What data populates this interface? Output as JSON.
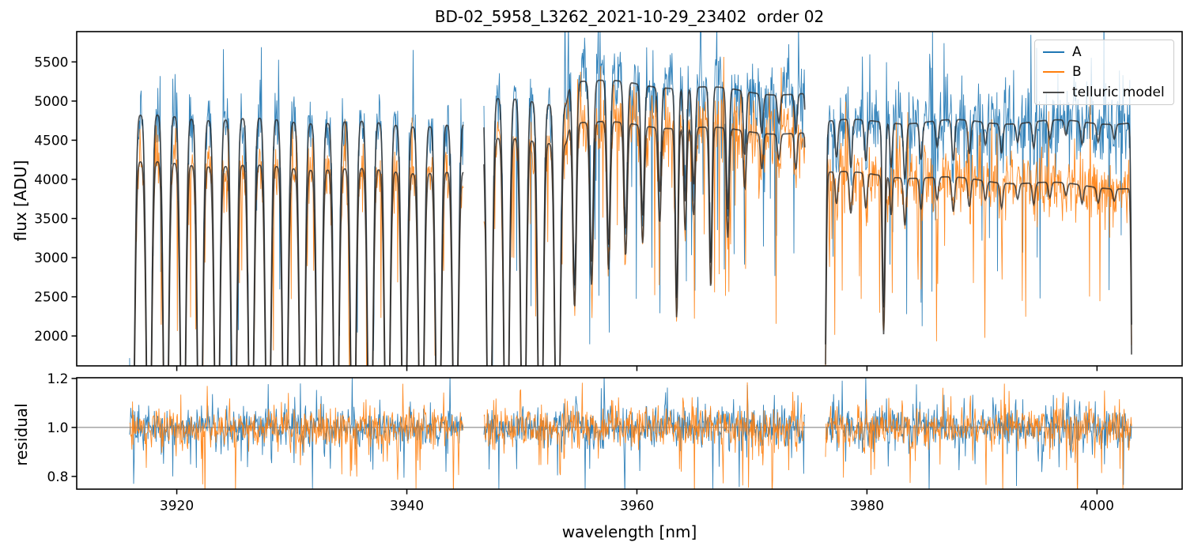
{
  "figure": {
    "title": "BD-02_5958_L3262_2021-10-29_23402  order 02",
    "xlabel": "wavelength [nm]",
    "ylabel_top": "flux [ADU]",
    "ylabel_bottom": "residual"
  },
  "legend": {
    "entries": [
      {
        "label": "A",
        "color": "#1f77b4"
      },
      {
        "label": "B",
        "color": "#ff7f0e"
      },
      {
        "label": "telluric model",
        "color": "#4d4d4d"
      }
    ]
  },
  "chart_data": {
    "type": "line",
    "title": "BD-02_5958_L3262_2021-10-29_23402  order 02",
    "xlabel": "wavelength [nm]",
    "xlim": [
      3911.3,
      4007.4
    ],
    "xticks": [
      3920,
      3940,
      3960,
      3980,
      4000
    ],
    "grid": false,
    "legend_position": "upper right",
    "panels": {
      "flux": {
        "ylabel": "flux [ADU]",
        "ylim": [
          1618,
          5887
        ],
        "yticks": [
          2000,
          2500,
          3000,
          3500,
          4000,
          4500,
          5000,
          5500
        ]
      },
      "residual": {
        "ylabel": "residual",
        "ylim": [
          0.748,
          1.203
        ],
        "yticks": [
          0.8,
          1.0,
          1.2
        ],
        "reference_line": 1.0,
        "reference_line_color": "#777777"
      }
    },
    "series": [
      {
        "name": "A",
        "color": "#1f77b4",
        "style": "noisy spectrum"
      },
      {
        "name": "B",
        "color": "#ff7f0e",
        "style": "noisy spectrum"
      },
      {
        "name": "telluric model",
        "color": "#2b2b2b",
        "style": "smooth model, one curve per fiber"
      }
    ],
    "segments": [
      {
        "range": [
          3915.9,
          3944.9
        ],
        "continuum_A": [
          5110,
          4970
        ],
        "continuum_B": [
          4480,
          4330
        ]
      },
      {
        "range": [
          3946.7,
          3974.6
        ],
        "continuum_A": [
          5340,
          5080
        ],
        "continuum_B": [
          4800,
          4580
        ]
      },
      {
        "range": [
          3976.4,
          4003.0
        ],
        "continuum_A": [
          4740,
          4730
        ],
        "continuum_B": [
          4090,
          3890
        ]
      }
    ],
    "continuum_wiggle": {
      "amplitude_A": 28,
      "amplitude_B": 24,
      "period_nm": 9.0
    },
    "telluric_comb": {
      "start": 3916.1,
      "period": 1.48,
      "last": 3953.2,
      "depth": 1.06,
      "sigma": 0.225,
      "secondary_offset": 0.74,
      "secondary_depth": 0.05,
      "secondary_sigma": 0.18
    },
    "telluric_lines": [
      {
        "c": 3954.58,
        "d": 0.5,
        "w": 0.15
      },
      {
        "c": 3956.06,
        "d": 0.44,
        "w": 0.15
      },
      {
        "c": 3957.54,
        "d": 0.4,
        "w": 0.14
      },
      {
        "c": 3959.02,
        "d": 0.36,
        "w": 0.14
      },
      {
        "c": 3960.5,
        "d": 0.32,
        "w": 0.14
      },
      {
        "c": 3961.98,
        "d": 0.26,
        "w": 0.13
      },
      {
        "c": 3963.46,
        "d": 0.52,
        "w": 0.12
      },
      {
        "c": 3964.2,
        "d": 0.28,
        "w": 0.12
      },
      {
        "c": 3964.94,
        "d": 0.24,
        "w": 0.13
      },
      {
        "c": 3966.42,
        "d": 0.44,
        "w": 0.12
      },
      {
        "c": 3967.9,
        "d": 0.3,
        "w": 0.12
      },
      {
        "c": 3969.38,
        "d": 0.16,
        "w": 0.12
      },
      {
        "c": 3970.86,
        "d": 0.1,
        "w": 0.12
      },
      {
        "c": 3972.34,
        "d": 0.07,
        "w": 0.12
      },
      {
        "c": 3973.82,
        "d": 0.1,
        "w": 0.11
      },
      {
        "c": 3974.9,
        "d": 0.92,
        "w": 0.12
      },
      {
        "c": 3976.3,
        "d": 0.85,
        "w": 0.12
      },
      {
        "c": 3977.35,
        "d": 0.1,
        "w": 0.12
      },
      {
        "c": 3978.6,
        "d": 0.13,
        "w": 0.12
      },
      {
        "c": 3979.9,
        "d": 0.11,
        "w": 0.12
      },
      {
        "c": 3981.45,
        "d": 0.5,
        "w": 0.11
      },
      {
        "c": 3982.1,
        "d": 0.12,
        "w": 0.1
      },
      {
        "c": 3983.3,
        "d": 0.15,
        "w": 0.12
      },
      {
        "c": 3984.7,
        "d": 0.1,
        "w": 0.12
      },
      {
        "c": 3986.1,
        "d": 0.07,
        "w": 0.12
      },
      {
        "c": 3987.5,
        "d": 0.11,
        "w": 0.12
      },
      {
        "c": 3988.9,
        "d": 0.09,
        "w": 0.12
      },
      {
        "c": 3990.3,
        "d": 0.06,
        "w": 0.12
      },
      {
        "c": 3991.7,
        "d": 0.08,
        "w": 0.12
      },
      {
        "c": 3993.1,
        "d": 0.05,
        "w": 0.12
      },
      {
        "c": 3994.5,
        "d": 0.07,
        "w": 0.12
      },
      {
        "c": 3995.9,
        "d": 0.05,
        "w": 0.12
      },
      {
        "c": 3997.3,
        "d": 0.04,
        "w": 0.12
      },
      {
        "c": 3998.7,
        "d": 0.06,
        "w": 0.12
      },
      {
        "c": 4000.1,
        "d": 0.05,
        "w": 0.12
      },
      {
        "c": 4001.5,
        "d": 0.04,
        "w": 0.12
      },
      {
        "c": 4003.1,
        "d": 0.9,
        "w": 0.1
      }
    ],
    "noise": {
      "rel_std": 0.05,
      "down_prob": 0.055,
      "down_min": 0.06,
      "down_max": 0.5,
      "up_prob": 0.045,
      "up_min": 0.05,
      "up_max": 0.22,
      "step_nm": 0.05,
      "seed": 7
    },
    "residual_noise": {
      "std": 0.042,
      "down_prob": 0.05,
      "down_min": 0.04,
      "down_max": 0.26,
      "up_prob": 0.045,
      "up_min": 0.03,
      "up_max": 0.15
    }
  }
}
